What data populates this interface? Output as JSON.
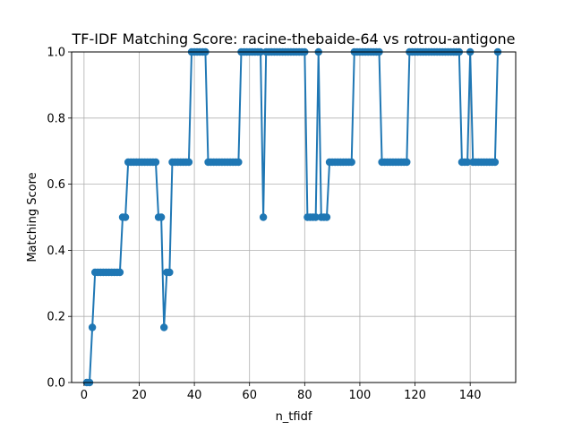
{
  "chart_data": {
    "type": "line",
    "title": "TF-IDF Matching Score: racine-thebaide-64 vs rotrou-antigone",
    "xlabel": "n_tfidf",
    "ylabel": "Matching Score",
    "xlim": [
      -4.5,
      156.5
    ],
    "ylim": [
      0,
      1
    ],
    "xticks": [
      0,
      20,
      40,
      60,
      80,
      100,
      120,
      140
    ],
    "xtick_labels": [
      "0",
      "20",
      "40",
      "60",
      "80",
      "100",
      "120",
      "140"
    ],
    "yticks": [
      0,
      0.2,
      0.4,
      0.6,
      0.8,
      1.0
    ],
    "ytick_labels": [
      "0.0",
      "0.2",
      "0.4",
      "0.6",
      "0.8",
      "1.0"
    ],
    "grid": true,
    "line_color": "#1f77b4",
    "marker": "circle",
    "x": [
      1,
      2,
      3,
      4,
      5,
      6,
      7,
      8,
      9,
      10,
      11,
      12,
      13,
      14,
      15,
      16,
      17,
      18,
      19,
      20,
      21,
      22,
      23,
      24,
      25,
      26,
      27,
      28,
      29,
      30,
      31,
      32,
      33,
      34,
      35,
      36,
      37,
      38,
      39,
      40,
      41,
      42,
      43,
      44,
      45,
      46,
      47,
      48,
      49,
      50,
      51,
      52,
      53,
      54,
      55,
      56,
      57,
      58,
      59,
      60,
      61,
      62,
      63,
      64,
      65,
      66,
      67,
      68,
      69,
      70,
      71,
      72,
      73,
      74,
      75,
      76,
      77,
      78,
      79,
      80,
      81,
      82,
      83,
      84,
      85,
      86,
      87,
      88,
      89,
      90,
      91,
      92,
      93,
      94,
      95,
      96,
      97,
      98,
      99,
      100,
      101,
      102,
      103,
      104,
      105,
      106,
      107,
      108,
      109,
      110,
      111,
      112,
      113,
      114,
      115,
      116,
      117,
      118,
      119,
      120,
      121,
      122,
      123,
      124,
      125,
      126,
      127,
      128,
      129,
      130,
      131,
      132,
      133,
      134,
      135,
      136,
      137,
      138,
      139,
      140,
      141,
      142,
      143,
      144,
      145,
      146,
      147,
      148,
      149,
      150
    ],
    "y": [
      0,
      0,
      0.1667,
      0.3333,
      0.3333,
      0.3333,
      0.3333,
      0.3333,
      0.3333,
      0.3333,
      0.3333,
      0.3333,
      0.3333,
      0.5,
      0.5,
      0.6667,
      0.6667,
      0.6667,
      0.6667,
      0.6667,
      0.6667,
      0.6667,
      0.6667,
      0.6667,
      0.6667,
      0.6667,
      0.5,
      0.5,
      0.1667,
      0.3333,
      0.3333,
      0.6667,
      0.6667,
      0.6667,
      0.6667,
      0.6667,
      0.6667,
      0.6667,
      1,
      1,
      1,
      1,
      1,
      1,
      0.6667,
      0.6667,
      0.6667,
      0.6667,
      0.6667,
      0.6667,
      0.6667,
      0.6667,
      0.6667,
      0.6667,
      0.6667,
      0.6667,
      1,
      1,
      1,
      1,
      1,
      1,
      1,
      1,
      0.5,
      1,
      1,
      1,
      1,
      1,
      1,
      1,
      1,
      1,
      1,
      1,
      1,
      1,
      1,
      1,
      0.5,
      0.5,
      0.5,
      0.5,
      1,
      0.5,
      0.5,
      0.5,
      0.6667,
      0.6667,
      0.6667,
      0.6667,
      0.6667,
      0.6667,
      0.6667,
      0.6667,
      0.6667,
      1,
      1,
      1,
      1,
      1,
      1,
      1,
      1,
      1,
      1,
      0.6667,
      0.6667,
      0.6667,
      0.6667,
      0.6667,
      0.6667,
      0.6667,
      0.6667,
      0.6667,
      0.6667,
      1,
      1,
      1,
      1,
      1,
      1,
      1,
      1,
      1,
      1,
      1,
      1,
      1,
      1,
      1,
      1,
      1,
      1,
      1,
      0.6667,
      0.6667,
      0.6667,
      1,
      0.6667,
      0.6667,
      0.6667,
      0.6667,
      0.6667,
      0.6667,
      0.6667,
      0.6667,
      0.6667,
      1
    ]
  }
}
